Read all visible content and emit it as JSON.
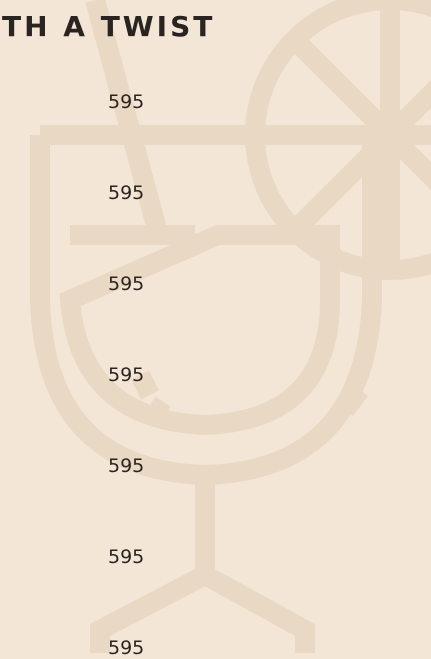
{
  "header": {
    "title": "TH A TWIST"
  },
  "items": [
    {
      "price": "595"
    },
    {
      "price": "595"
    },
    {
      "price": "595"
    },
    {
      "price": "595"
    },
    {
      "price": "595"
    },
    {
      "price": "595"
    },
    {
      "price": "595"
    }
  ]
}
